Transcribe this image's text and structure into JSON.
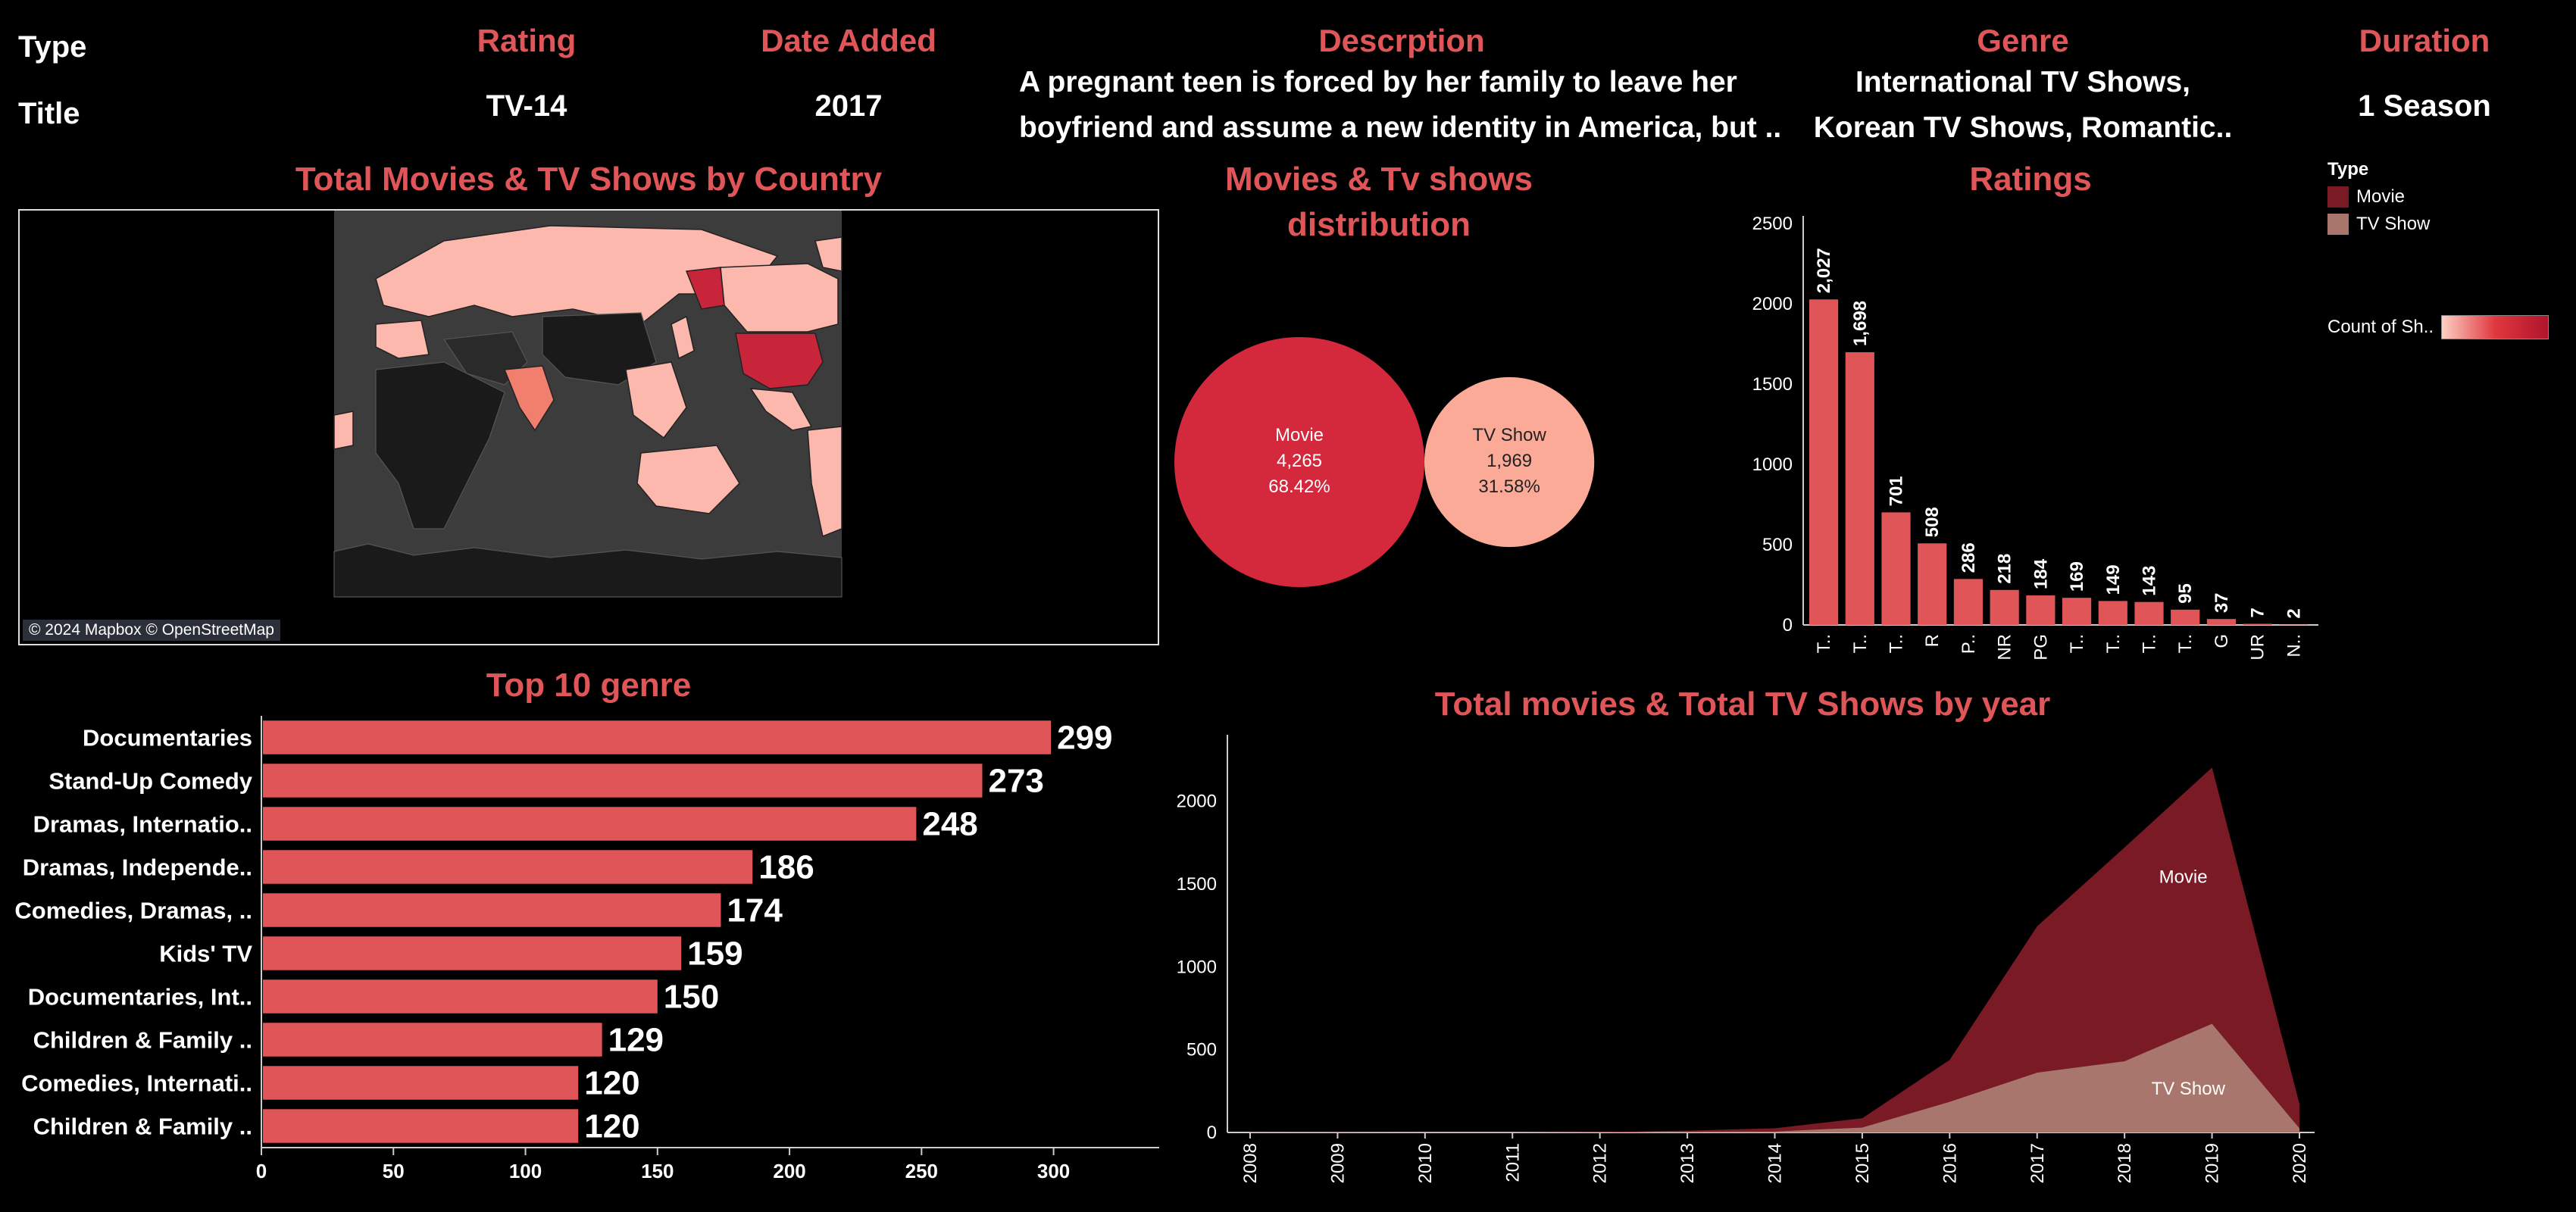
{
  "header": {
    "type_label": "Type",
    "title_label": "Title",
    "rating_head": "Rating",
    "rating_value": "TV-14",
    "date_head": "Date Added",
    "date_value": "2017",
    "desc_head": "Descrption",
    "desc_line1": "A pregnant teen is forced by her family to leave her",
    "desc_line2": "boyfriend and assume a new identity in America, but ..",
    "genre_head": "Genre",
    "genre_line1": "International TV Shows,",
    "genre_line2": "Korean TV Shows, Romantic..",
    "duration_head": "Duration",
    "duration_value": "1 Season"
  },
  "legend": {
    "type_title": "Type",
    "items": [
      {
        "label": "Movie",
        "color": "#7a1a25"
      },
      {
        "label": "TV Show",
        "color": "#a8766c"
      }
    ],
    "count_label": "Count of Sh.."
  },
  "map": {
    "title": "Total Movies & TV Shows by Country",
    "attribution": "© 2024 Mapbox © OpenStreetMap"
  },
  "colors": {
    "accent": "#e05558",
    "movie_bubble": "#d4283c",
    "tv_bubble": "#fcaa98",
    "bar": "#e05558",
    "area_movie": "#7a1a25",
    "area_tv": "#a8766c",
    "map_land": "#3c3c3c",
    "map_light": "#fcb8ac",
    "map_dark": "#c8243a"
  },
  "chart_data": [
    {
      "type": "pie",
      "title": "Movies & Tv shows distribution",
      "title_line1": "Movies & Tv shows",
      "title_line2": "distribution",
      "slices": [
        {
          "name": "Movie",
          "value": 4265,
          "value_label": "4,265",
          "percent": "68.42%"
        },
        {
          "name": "TV Show",
          "value": 1969,
          "value_label": "1,969",
          "percent": "31.58%"
        }
      ]
    },
    {
      "type": "bar",
      "title": "Ratings",
      "categories": [
        "T..",
        "T..",
        "T..",
        "R",
        "P..",
        "NR",
        "PG",
        "T..",
        "T..",
        "T..",
        "T..",
        "G",
        "UR",
        "N.."
      ],
      "values": [
        2027,
        1698,
        701,
        508,
        286,
        218,
        184,
        169,
        149,
        143,
        95,
        37,
        7,
        2
      ],
      "value_labels": [
        "2,027",
        "1,698",
        "701",
        "508",
        "286",
        "218",
        "184",
        "169",
        "149",
        "143",
        "95",
        "37",
        "7",
        "2"
      ],
      "yticks": [
        0,
        500,
        1000,
        1500,
        2000,
        2500
      ],
      "ylim": [
        0,
        2500
      ]
    },
    {
      "type": "bar",
      "title": "Top 10 genre",
      "orientation": "horizontal",
      "categories": [
        "Documentaries",
        "Stand-Up Comedy",
        "Dramas, Internatio..",
        "Dramas, Independe..",
        "Comedies, Dramas, ..",
        "Kids' TV",
        "Documentaries, Int..",
        "Children & Family ..",
        "Comedies, Internati..",
        "Children & Family .."
      ],
      "values": [
        299,
        273,
        248,
        186,
        174,
        159,
        150,
        129,
        120,
        120
      ],
      "xticks": [
        0,
        50,
        100,
        150,
        200,
        250,
        300
      ],
      "xlim": [
        0,
        340
      ]
    },
    {
      "type": "area",
      "title": "Total movies & Total TV Shows by year",
      "x": [
        "2008",
        "2009",
        "2010",
        "2011",
        "2012",
        "2013",
        "2014",
        "2015",
        "2016",
        "2017",
        "2018",
        "2019",
        "2020"
      ],
      "series": [
        {
          "name": "Movie",
          "values": [
            1,
            2,
            1,
            1,
            3,
            6,
            19,
            56,
            253,
            883,
            1290,
            1546,
            147
          ]
        },
        {
          "name": "TV Show",
          "values": [
            0,
            0,
            0,
            0,
            0,
            5,
            6,
            30,
            185,
            361,
            430,
            656,
            25
          ]
        }
      ],
      "yticks": [
        0,
        500,
        1000,
        1500,
        2000
      ],
      "ylim": [
        0,
        2400
      ]
    }
  ]
}
